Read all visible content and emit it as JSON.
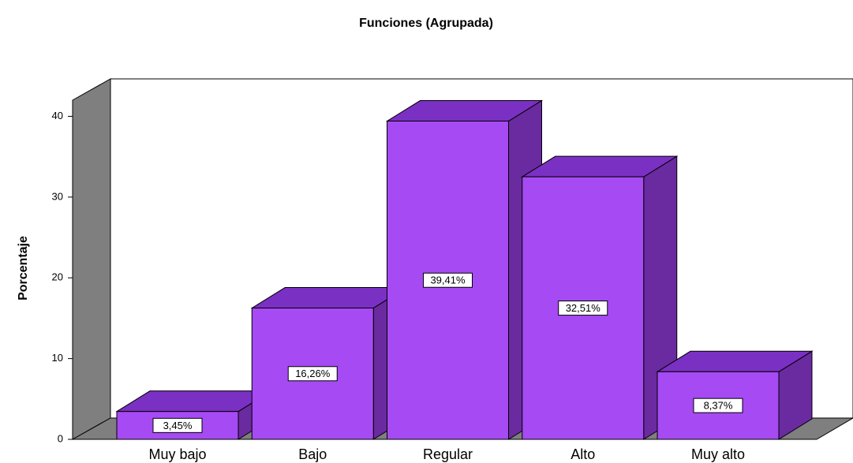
{
  "chart_data": {
    "type": "bar3d",
    "title": "Funciones (Agrupada)",
    "y_label": "Porcentaje",
    "categories": [
      "Muy bajo",
      "Bajo",
      "Regular",
      "Alto",
      "Muy alto"
    ],
    "values": [
      3.45,
      16.26,
      39.41,
      32.51,
      8.37
    ],
    "value_labels": [
      "3,45%",
      "16,26%",
      "39,41%",
      "32,51%",
      "8,37%"
    ],
    "color": "#a64af4",
    "ylim": [
      0,
      42
    ],
    "yticks": [
      0,
      10,
      20,
      30,
      40
    ]
  }
}
